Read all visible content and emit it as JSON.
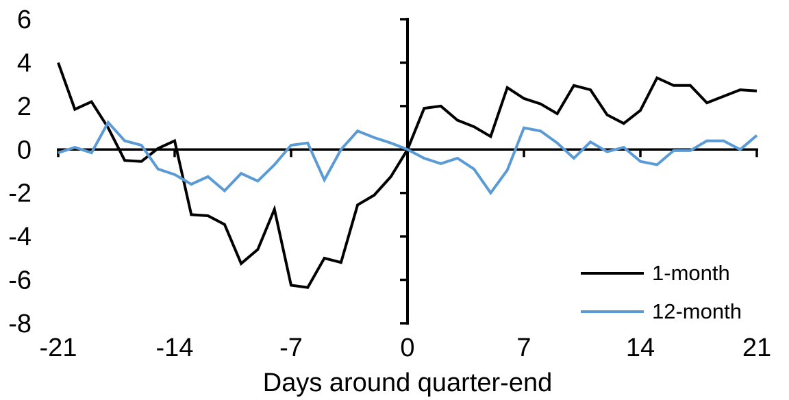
{
  "chart_data": {
    "type": "line",
    "title": "",
    "xlabel": "Days around quarter-end",
    "ylabel": "",
    "xlim": [
      -21,
      21
    ],
    "ylim": [
      -8,
      6
    ],
    "x_ticks": [
      -21,
      -14,
      -7,
      0,
      7,
      14,
      21
    ],
    "y_ticks": [
      6,
      4,
      2,
      0,
      -2,
      -4,
      -6,
      -8
    ],
    "grid": false,
    "legend_position": "bottom-right",
    "axis_color": "#000000",
    "x": [
      -21,
      -20,
      -19,
      -18,
      -17,
      -16,
      -15,
      -14,
      -13,
      -12,
      -11,
      -10,
      -9,
      -8,
      -7,
      -6,
      -5,
      -4,
      -3,
      -2,
      -1,
      0,
      1,
      2,
      3,
      4,
      5,
      6,
      7,
      8,
      9,
      10,
      11,
      12,
      13,
      14,
      15,
      16,
      17,
      18,
      19,
      20,
      21
    ],
    "series": [
      {
        "name": "1-month",
        "color": "#000000",
        "values": [
          4.0,
          1.85,
          2.2,
          1.0,
          -0.5,
          -0.55,
          0.05,
          0.4,
          -3.0,
          -3.05,
          -3.45,
          -5.25,
          -4.6,
          -2.75,
          -6.25,
          -6.35,
          -5.0,
          -5.2,
          -2.55,
          -2.1,
          -1.25,
          0.0,
          1.9,
          2.0,
          1.35,
          1.05,
          0.6,
          2.85,
          2.35,
          2.1,
          1.65,
          2.95,
          2.75,
          1.6,
          1.2,
          1.8,
          3.3,
          2.95,
          2.95,
          2.15,
          2.45,
          2.75,
          2.7
        ]
      },
      {
        "name": "12-month",
        "color": "#5B9BD5",
        "values": [
          -0.15,
          0.1,
          -0.15,
          1.25,
          0.4,
          0.2,
          -0.9,
          -1.15,
          -1.6,
          -1.25,
          -1.9,
          -1.1,
          -1.45,
          -0.7,
          0.2,
          0.3,
          -1.4,
          0.0,
          0.85,
          0.55,
          0.3,
          0.0,
          -0.4,
          -0.65,
          -0.4,
          -0.9,
          -2.0,
          -0.95,
          1.0,
          0.85,
          0.3,
          -0.4,
          0.35,
          -0.1,
          0.1,
          -0.55,
          -0.7,
          -0.05,
          -0.05,
          0.4,
          0.4,
          0.0,
          0.65
        ]
      }
    ]
  }
}
